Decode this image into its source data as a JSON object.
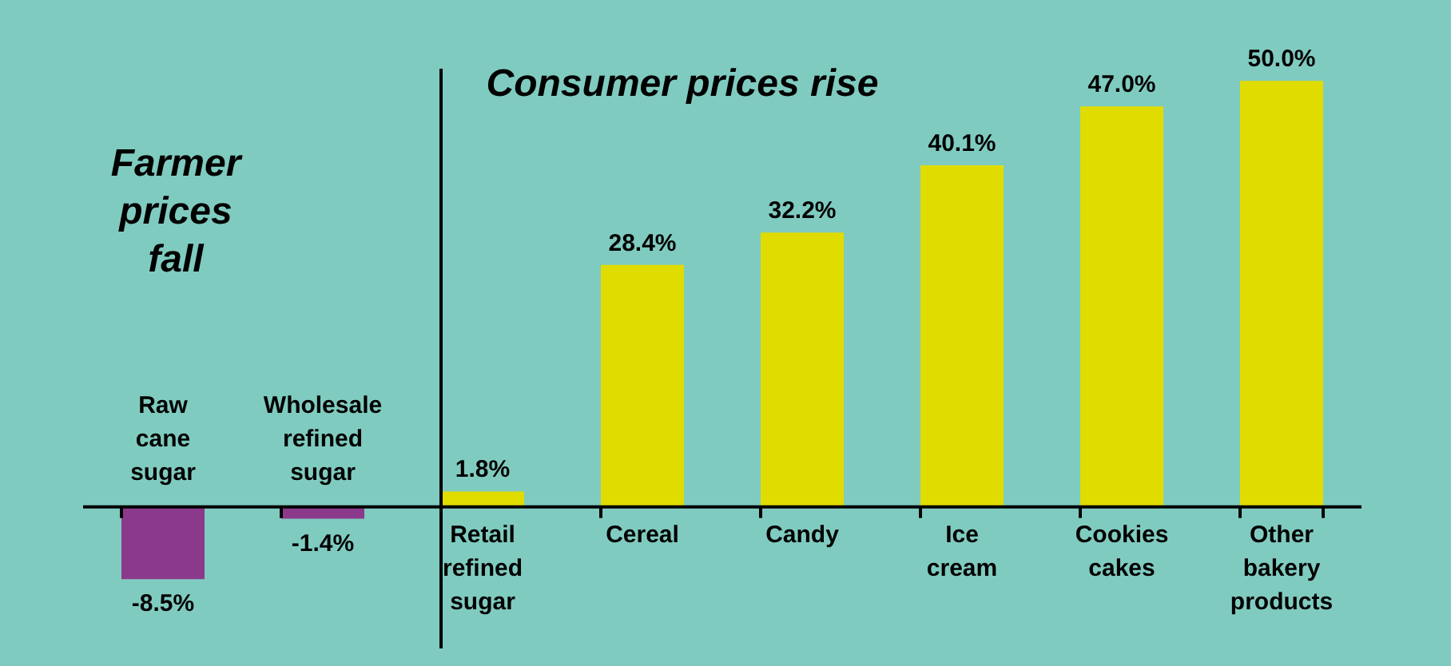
{
  "chart_data": {
    "type": "bar",
    "categories": [
      "Raw cane sugar",
      "Wholesale refined sugar",
      "Retail refined sugar",
      "Cereal",
      "Candy",
      "Ice cream",
      "Cookies cakes",
      "Other bakery products"
    ],
    "values": [
      -8.5,
      -1.4,
      1.8,
      28.4,
      32.2,
      40.1,
      47.0,
      50.0
    ],
    "colors": [
      "#8b3a8b",
      "#8b3a8b",
      "#e0dc00",
      "#e0dc00",
      "#e0dc00",
      "#e0dc00",
      "#e0dc00",
      "#e0dc00"
    ],
    "value_labels": [
      "-8.5%",
      "-1.4%",
      "1.8%",
      "28.4%",
      "32.2%",
      "40.1%",
      "47.0%",
      "50.0%"
    ],
    "annotations": [
      "Farmer prices fall",
      "Consumer prices rise"
    ],
    "ref_lines": [
      {
        "axis": "x",
        "value": "Retail refined sugar",
        "color": "#000000"
      }
    ]
  }
}
